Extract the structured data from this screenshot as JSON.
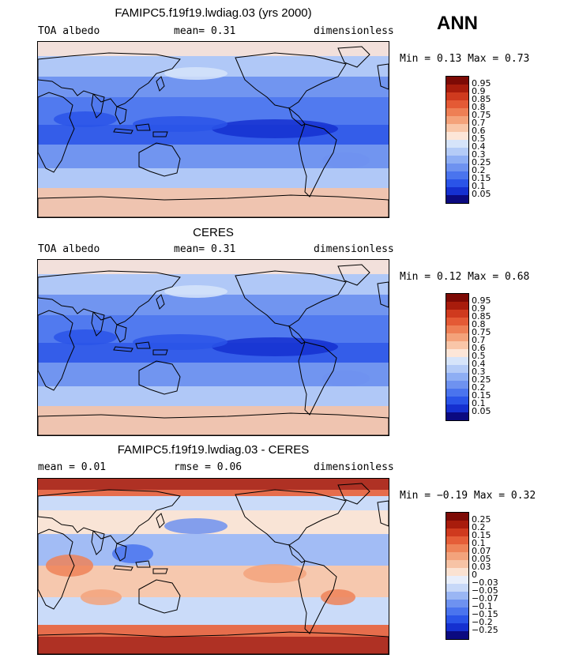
{
  "season": "ANN",
  "colors": {
    "land_outline": "#000000",
    "ramp_abs": [
      "#0b0a80",
      "#1530d0",
      "#2a54e8",
      "#4a74ee",
      "#6e92f0",
      "#8eaef4",
      "#b4cbf7",
      "#d6e4fa",
      "#fde6d8",
      "#f9c6a8",
      "#f4a27a",
      "#ee7f55",
      "#e45a35",
      "#cf3a1e",
      "#a81c0c",
      "#7d0a05"
    ],
    "ramp_diff": [
      "#0b0a80",
      "#1530d0",
      "#2a54e8",
      "#4a74ee",
      "#6e92f0",
      "#9ab6f4",
      "#c7d8f8",
      "#e8eefb",
      "#fbe2d2",
      "#f7c3a5",
      "#f3a37c",
      "#ee8358",
      "#e55e38",
      "#cf3a1e",
      "#a81c0c",
      "#7d0a05"
    ]
  },
  "panels": [
    {
      "id": "model",
      "title": "FAMIPC5.f19f19.lwdiag.03 (yrs 2000)",
      "left_label": "TOA albedo",
      "mid_label": "mean=   0.31",
      "right_label": "dimensionless",
      "minmax": "Min =   0.13 Max =   0.73",
      "colorbar_labels": [
        "0.95",
        "0.9",
        "0.85",
        "0.8",
        "0.75",
        "0.7",
        "0.6",
        "0.5",
        "0.4",
        "0.3",
        "0.25",
        "0.2",
        "0.15",
        "0.1",
        "0.05"
      ]
    },
    {
      "id": "obs",
      "title": "CERES",
      "left_label": "TOA albedo",
      "mid_label": "mean=   0.31",
      "right_label": "dimensionless",
      "minmax": "Min =   0.12 Max =   0.68",
      "colorbar_labels": [
        "0.95",
        "0.9",
        "0.85",
        "0.8",
        "0.75",
        "0.7",
        "0.6",
        "0.5",
        "0.4",
        "0.3",
        "0.25",
        "0.2",
        "0.15",
        "0.1",
        "0.05"
      ]
    },
    {
      "id": "diff",
      "title": "FAMIPC5.f19f19.lwdiag.03 - CERES",
      "left_label": "mean =   0.01",
      "mid_label": "rmse =   0.06",
      "right_label": "dimensionless",
      "minmax": "Min =  −0.19 Max =   0.32",
      "colorbar_labels": [
        "0.25",
        "0.2",
        "0.15",
        "0.1",
        "0.07",
        "0.05",
        "0.03",
        "0",
        "−0.03",
        "−0.05",
        "−0.07",
        "−0.1",
        "−0.15",
        "−0.2",
        "−0.25"
      ]
    }
  ]
}
